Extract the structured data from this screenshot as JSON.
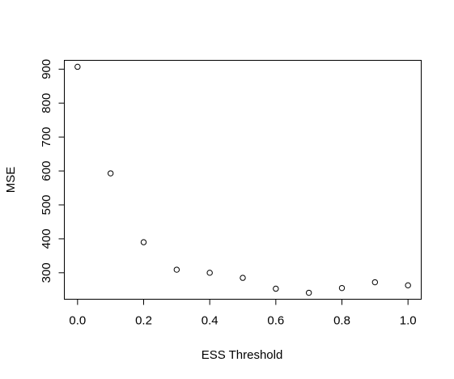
{
  "chart_data": {
    "type": "scatter",
    "title": "",
    "xlabel": "ESS Threshold",
    "ylabel": "MSE",
    "x": [
      0.0,
      0.1,
      0.2,
      0.3,
      0.4,
      0.5,
      0.6,
      0.7,
      0.8,
      0.9,
      1.0
    ],
    "y": [
      907,
      593,
      390,
      309,
      300,
      285,
      253,
      241,
      255,
      272,
      263
    ],
    "xlim": [
      -0.04,
      1.04
    ],
    "ylim": [
      222,
      926
    ],
    "xticks": [
      0.0,
      0.2,
      0.4,
      0.6,
      0.8,
      1.0
    ],
    "xtick_labels": [
      "0.0",
      "0.2",
      "0.4",
      "0.6",
      "0.8",
      "1.0"
    ],
    "yticks": [
      300,
      400,
      500,
      600,
      700,
      800,
      900
    ],
    "ytick_labels": [
      "300",
      "400",
      "500",
      "600",
      "700",
      "800",
      "900"
    ],
    "marker": "open-circle",
    "marker_color": "#000000",
    "grid": false,
    "legend": "none"
  }
}
